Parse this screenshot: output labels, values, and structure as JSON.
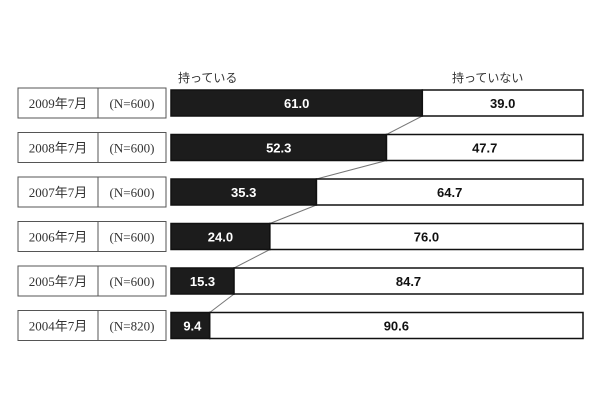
{
  "chart_data": {
    "type": "bar",
    "orientation": "horizontal",
    "stacked": true,
    "percent": true,
    "xlim": [
      0,
      100
    ],
    "legend": [
      "持っている",
      "持っていない"
    ],
    "legend_placement": "top",
    "categories": [
      {
        "period": "2009年7月",
        "n": "(N=600)"
      },
      {
        "period": "2008年7月",
        "n": "(N=600)"
      },
      {
        "period": "2007年7月",
        "n": "(N=600)"
      },
      {
        "period": "2006年7月",
        "n": "(N=600)"
      },
      {
        "period": "2005年7月",
        "n": "(N=600)"
      },
      {
        "period": "2004年7月",
        "n": "(N=820)"
      }
    ],
    "series": [
      {
        "name": "持っている",
        "color": "#1c1c1c",
        "values": [
          61.0,
          52.3,
          35.3,
          24.0,
          15.3,
          9.4
        ]
      },
      {
        "name": "持っていない",
        "color": "#ffffff",
        "values": [
          39.0,
          47.7,
          64.7,
          76.0,
          84.7,
          90.6
        ]
      }
    ]
  }
}
